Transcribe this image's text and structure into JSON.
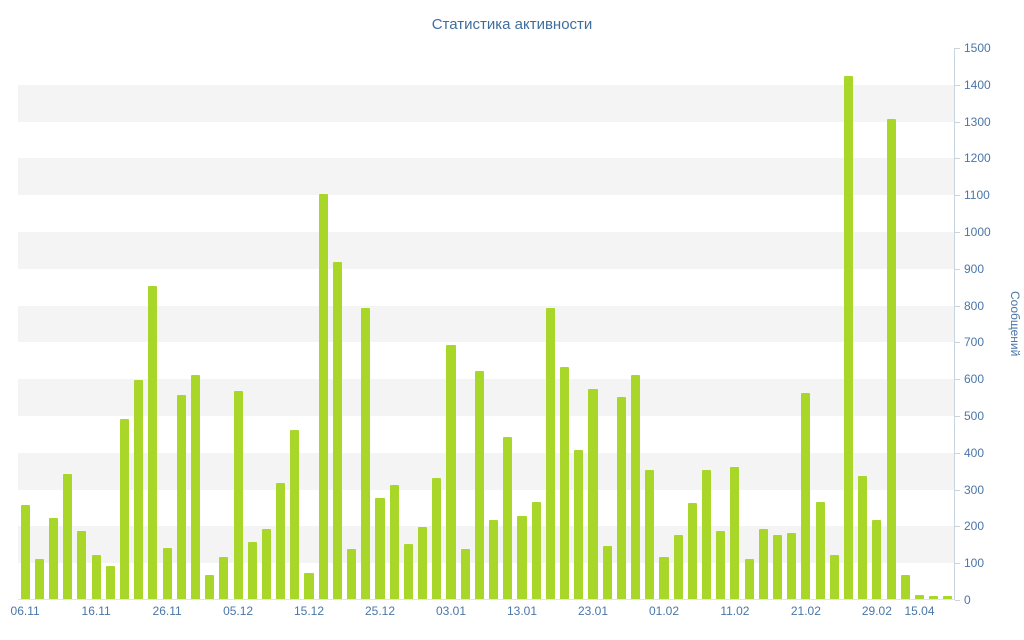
{
  "page": {
    "background": "#ffffff"
  },
  "chart_data": {
    "type": "bar",
    "title": "Статистика активности",
    "xlabel": "",
    "ylabel": "Сообщений",
    "ylim": [
      0,
      1500
    ],
    "y_step": 100,
    "y_ticks": [
      0,
      100,
      200,
      300,
      400,
      500,
      600,
      700,
      800,
      900,
      1000,
      1100,
      1200,
      1300,
      1400,
      1500
    ],
    "value_axis_side": "right",
    "legend_position": "none",
    "grid": "alternating-horizontal-bands",
    "x_tick_labels": [
      "06.11",
      "16.11",
      "26.11",
      "05.12",
      "15.12",
      "25.12",
      "03.01",
      "13.01",
      "23.01",
      "01.02",
      "11.02",
      "21.02",
      "29.02",
      "15.04"
    ],
    "x_tick_bar_indices": [
      0,
      5,
      10,
      15,
      20,
      25,
      30,
      35,
      40,
      45,
      50,
      55,
      60,
      63
    ],
    "values": [
      255,
      110,
      220,
      340,
      185,
      120,
      90,
      490,
      595,
      850,
      140,
      555,
      610,
      65,
      115,
      565,
      155,
      190,
      315,
      460,
      70,
      1100,
      915,
      135,
      790,
      275,
      310,
      150,
      195,
      330,
      690,
      135,
      620,
      215,
      440,
      225,
      265,
      790,
      630,
      405,
      570,
      145,
      550,
      610,
      350,
      115,
      175,
      260,
      350,
      185,
      360,
      110,
      190,
      175,
      180,
      560,
      265,
      120,
      1420,
      335,
      215,
      1305,
      65,
      10,
      8,
      8
    ],
    "colors": {
      "bar": "#a8d629",
      "band": "#f4f4f4",
      "label_text": "#4a76a8",
      "title_text": "#3f6e9e",
      "axis_line": "#c9d4de"
    }
  }
}
